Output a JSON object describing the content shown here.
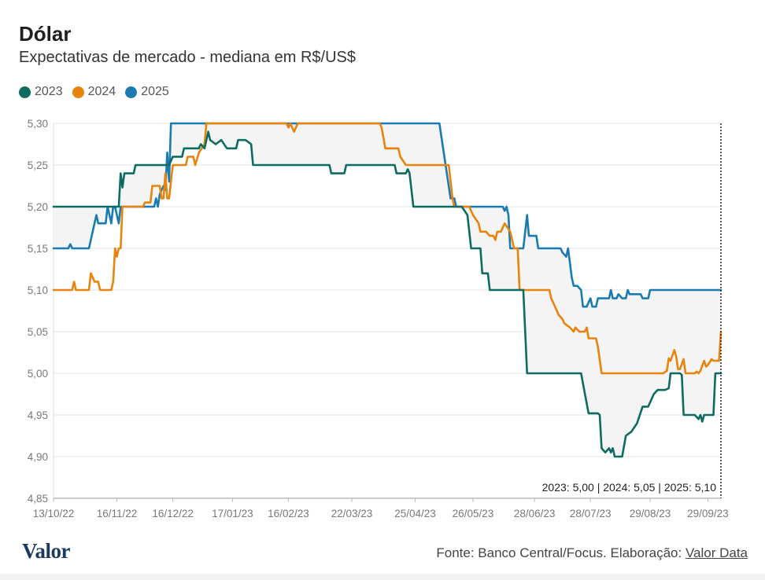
{
  "header": {
    "title": "Dólar",
    "subtitle": "Expectativas de mercado - mediana em R$/US$"
  },
  "footer": {
    "logo": "Valor",
    "source_prefix": "Fonte: Banco Central/Focus. Elaboração: ",
    "source_link": "Valor Data"
  },
  "chart_data": {
    "type": "line",
    "title": "Dólar",
    "subtitle": "Expectativas de mercado - mediana em R$/US$",
    "xlabel": "",
    "ylabel": "",
    "x_ticks": [
      "13/10/22",
      "16/11/22",
      "16/12/22",
      "17/01/23",
      "16/02/23",
      "22/03/23",
      "25/04/23",
      "26/05/23",
      "28/06/23",
      "28/07/23",
      "29/08/23",
      "29/09/23"
    ],
    "x_range": [
      "2022-10-13",
      "2023-10-06"
    ],
    "ylim": [
      4.85,
      5.3
    ],
    "y_ticks": [
      "4,85",
      "4,90",
      "4,95",
      "5,00",
      "5,05",
      "5,10",
      "5,15",
      "5,20",
      "5,25",
      "5,30"
    ],
    "grid": "horizontal",
    "legend": "top-left",
    "annotation": "2023: 5,00 | 2024: 5,05 | 2025: 5,10",
    "band_between": [
      "2023",
      "2025"
    ],
    "series": [
      {
        "name": "2023",
        "color": "#0e6b61",
        "points": [
          [
            "2022-10-13",
            5.2
          ],
          [
            "2022-11-17",
            5.2
          ],
          [
            "2022-11-18",
            5.24
          ],
          [
            "2022-11-19",
            5.223
          ],
          [
            "2022-11-20",
            5.24
          ],
          [
            "2022-11-25",
            5.24
          ],
          [
            "2022-11-26",
            5.25
          ],
          [
            "2022-12-13",
            5.25
          ],
          [
            "2022-12-14",
            5.25
          ],
          [
            "2022-12-16",
            5.26
          ],
          [
            "2022-12-21",
            5.26
          ],
          [
            "2022-12-22",
            5.27
          ],
          [
            "2022-12-30",
            5.27
          ],
          [
            "2022-12-31",
            5.275
          ],
          [
            "2023-01-02",
            5.27
          ],
          [
            "2023-01-04",
            5.29
          ],
          [
            "2023-01-05",
            5.28
          ],
          [
            "2023-01-08",
            5.275
          ],
          [
            "2023-01-11",
            5.28
          ],
          [
            "2023-01-14",
            5.27
          ],
          [
            "2023-01-19",
            5.27
          ],
          [
            "2023-01-20",
            5.28
          ],
          [
            "2023-01-24",
            5.28
          ],
          [
            "2023-01-27",
            5.275
          ],
          [
            "2023-01-28",
            5.25
          ],
          [
            "2023-03-10",
            5.25
          ],
          [
            "2023-03-11",
            5.24
          ],
          [
            "2023-03-18",
            5.24
          ],
          [
            "2023-03-19",
            5.25
          ],
          [
            "2023-04-14",
            5.25
          ],
          [
            "2023-04-15",
            5.24
          ],
          [
            "2023-04-20",
            5.24
          ],
          [
            "2023-04-21",
            5.245
          ],
          [
            "2023-04-22",
            5.24
          ],
          [
            "2023-04-24",
            5.2
          ],
          [
            "2023-05-20",
            5.2
          ],
          [
            "2023-05-23",
            5.19
          ],
          [
            "2023-05-25",
            5.15
          ],
          [
            "2023-05-30",
            5.15
          ],
          [
            "2023-05-31",
            5.12
          ],
          [
            "2023-06-03",
            5.12
          ],
          [
            "2023-06-04",
            5.1
          ],
          [
            "2023-06-22",
            5.1
          ],
          [
            "2023-06-24",
            5.0
          ],
          [
            "2023-07-23",
            5.0
          ],
          [
            "2023-07-27",
            4.952
          ],
          [
            "2023-08-01",
            4.952
          ],
          [
            "2023-08-02",
            4.95
          ],
          [
            "2023-08-03",
            4.91
          ],
          [
            "2023-08-05",
            4.905
          ],
          [
            "2023-08-07",
            4.91
          ],
          [
            "2023-08-08",
            4.905
          ],
          [
            "2023-08-09",
            4.91
          ],
          [
            "2023-08-10",
            4.9
          ],
          [
            "2023-08-14",
            4.9
          ],
          [
            "2023-08-16",
            4.925
          ],
          [
            "2023-08-19",
            4.93
          ],
          [
            "2023-08-22",
            4.94
          ],
          [
            "2023-08-25",
            4.96
          ],
          [
            "2023-08-28",
            4.96
          ],
          [
            "2023-08-31",
            4.975
          ],
          [
            "2023-09-02",
            4.98
          ],
          [
            "2023-09-06",
            4.98
          ],
          [
            "2023-09-08",
            4.982
          ],
          [
            "2023-09-09",
            5.0
          ],
          [
            "2023-09-14",
            5.0
          ],
          [
            "2023-09-15",
            4.998
          ],
          [
            "2023-09-16",
            4.95
          ],
          [
            "2023-09-22",
            4.95
          ],
          [
            "2023-09-24",
            4.945
          ],
          [
            "2023-09-25",
            4.95
          ],
          [
            "2023-09-26",
            4.942
          ],
          [
            "2023-09-27",
            4.95
          ],
          [
            "2023-10-02",
            4.95
          ],
          [
            "2023-10-03",
            5.0
          ],
          [
            "2023-10-06",
            5.0
          ]
        ]
      },
      {
        "name": "2024",
        "color": "#e8830c",
        "points": [
          [
            "2022-10-13",
            5.1
          ],
          [
            "2022-10-23",
            5.1
          ],
          [
            "2022-10-24",
            5.11
          ],
          [
            "2022-10-25",
            5.1
          ],
          [
            "2022-11-01",
            5.1
          ],
          [
            "2022-11-02",
            5.12
          ],
          [
            "2022-11-04",
            5.11
          ],
          [
            "2022-11-06",
            5.11
          ],
          [
            "2022-11-07",
            5.1
          ],
          [
            "2022-11-13",
            5.1
          ],
          [
            "2022-11-14",
            5.11
          ],
          [
            "2022-11-15",
            5.15
          ],
          [
            "2022-11-16",
            5.14
          ],
          [
            "2022-11-17",
            5.15
          ],
          [
            "2022-11-18",
            5.15
          ],
          [
            "2022-11-19",
            5.2
          ],
          [
            "2022-11-30",
            5.2
          ],
          [
            "2022-12-01",
            5.205
          ],
          [
            "2022-12-04",
            5.205
          ],
          [
            "2022-12-05",
            5.225
          ],
          [
            "2022-12-09",
            5.225
          ],
          [
            "2022-12-10",
            5.21
          ],
          [
            "2022-12-11",
            5.21
          ],
          [
            "2022-12-12",
            5.24
          ],
          [
            "2022-12-13",
            5.21
          ],
          [
            "2022-12-14",
            5.21
          ],
          [
            "2022-12-15",
            5.23
          ],
          [
            "2022-12-16",
            5.25
          ],
          [
            "2022-12-23",
            5.25
          ],
          [
            "2022-12-24",
            5.26
          ],
          [
            "2022-12-27",
            5.26
          ],
          [
            "2022-12-28",
            5.25
          ],
          [
            "2022-12-30",
            5.265
          ],
          [
            "2023-01-02",
            5.275
          ],
          [
            "2023-01-03",
            5.3
          ],
          [
            "2023-02-15",
            5.3
          ],
          [
            "2023-02-16",
            5.295
          ],
          [
            "2023-02-17",
            5.3
          ],
          [
            "2023-02-19",
            5.29
          ],
          [
            "2023-02-21",
            5.3
          ],
          [
            "2023-04-06",
            5.3
          ],
          [
            "2023-04-07",
            5.295
          ],
          [
            "2023-04-09",
            5.27
          ],
          [
            "2023-04-16",
            5.27
          ],
          [
            "2023-04-17",
            5.26
          ],
          [
            "2023-04-20",
            5.25
          ],
          [
            "2023-05-13",
            5.25
          ],
          [
            "2023-05-15",
            5.21
          ],
          [
            "2023-05-16",
            5.2
          ],
          [
            "2023-05-24",
            5.2
          ],
          [
            "2023-05-26",
            5.19
          ],
          [
            "2023-05-29",
            5.18
          ],
          [
            "2023-05-30",
            5.17
          ],
          [
            "2023-06-02",
            5.17
          ],
          [
            "2023-06-04",
            5.165
          ],
          [
            "2023-06-06",
            5.165
          ],
          [
            "2023-06-07",
            5.16
          ],
          [
            "2023-06-08",
            5.17
          ],
          [
            "2023-06-10",
            5.17
          ],
          [
            "2023-06-12",
            5.18
          ],
          [
            "2023-06-15",
            5.17
          ],
          [
            "2023-06-17",
            5.15
          ],
          [
            "2023-06-19",
            5.15
          ],
          [
            "2023-06-20",
            5.1
          ],
          [
            "2023-07-06",
            5.1
          ],
          [
            "2023-07-07",
            5.09
          ],
          [
            "2023-07-09",
            5.08
          ],
          [
            "2023-07-11",
            5.07
          ],
          [
            "2023-07-13",
            5.065
          ],
          [
            "2023-07-14",
            5.06
          ],
          [
            "2023-07-17",
            5.055
          ],
          [
            "2023-07-19",
            5.05
          ],
          [
            "2023-07-20",
            5.055
          ],
          [
            "2023-07-22",
            5.05
          ],
          [
            "2023-07-25",
            5.05
          ],
          [
            "2023-07-26",
            5.055
          ],
          [
            "2023-07-27",
            5.042
          ],
          [
            "2023-07-31",
            5.042
          ],
          [
            "2023-08-01",
            5.032
          ],
          [
            "2023-08-03",
            5.0
          ],
          [
            "2023-09-05",
            5.0
          ],
          [
            "2023-09-07",
            5.003
          ],
          [
            "2023-09-08",
            5.018
          ],
          [
            "2023-09-09",
            5.015
          ],
          [
            "2023-09-11",
            5.028
          ],
          [
            "2023-09-12",
            5.02
          ],
          [
            "2023-09-13",
            5.005
          ],
          [
            "2023-09-14",
            5.005
          ],
          [
            "2023-09-16",
            5.017
          ],
          [
            "2023-09-17",
            5.0
          ],
          [
            "2023-09-22",
            5.0
          ],
          [
            "2023-09-23",
            5.002
          ],
          [
            "2023-09-24",
            5.0
          ],
          [
            "2023-09-25",
            5.003
          ],
          [
            "2023-09-27",
            5.015
          ],
          [
            "2023-09-28",
            5.008
          ],
          [
            "2023-09-29",
            5.01
          ],
          [
            "2023-10-01",
            5.017
          ],
          [
            "2023-10-02",
            5.015
          ],
          [
            "2023-10-05",
            5.015
          ],
          [
            "2023-10-06",
            5.05
          ]
        ]
      },
      {
        "name": "2025",
        "color": "#1a7bb0",
        "points": [
          [
            "2022-10-13",
            5.15
          ],
          [
            "2022-10-21",
            5.15
          ],
          [
            "2022-10-22",
            5.155
          ],
          [
            "2022-10-23",
            5.15
          ],
          [
            "2022-11-01",
            5.15
          ],
          [
            "2022-11-02",
            5.16
          ],
          [
            "2022-11-04",
            5.18
          ],
          [
            "2022-11-05",
            5.19
          ],
          [
            "2022-11-06",
            5.18
          ],
          [
            "2022-11-10",
            5.18
          ],
          [
            "2022-11-11",
            5.2
          ],
          [
            "2022-11-12",
            5.19
          ],
          [
            "2022-11-13",
            5.18
          ],
          [
            "2022-11-14",
            5.2
          ],
          [
            "2022-11-15",
            5.2
          ],
          [
            "2022-11-16",
            5.19
          ],
          [
            "2022-11-17",
            5.18
          ],
          [
            "2022-11-18",
            5.2
          ],
          [
            "2022-12-06",
            5.2
          ],
          [
            "2022-12-07",
            5.21
          ],
          [
            "2022-12-08",
            5.2
          ],
          [
            "2022-12-09",
            5.215
          ],
          [
            "2022-12-11",
            5.225
          ],
          [
            "2022-12-12",
            5.22
          ],
          [
            "2022-12-13",
            5.265
          ],
          [
            "2022-12-14",
            5.23
          ],
          [
            "2022-12-15",
            5.3
          ],
          [
            "2023-05-08",
            5.3
          ],
          [
            "2023-05-14",
            5.21
          ],
          [
            "2023-05-16",
            5.21
          ],
          [
            "2023-05-17",
            5.2
          ],
          [
            "2023-06-11",
            5.2
          ],
          [
            "2023-06-12",
            5.195
          ],
          [
            "2023-06-13",
            5.2
          ],
          [
            "2023-06-14",
            5.19
          ],
          [
            "2023-06-15",
            5.15
          ],
          [
            "2023-06-22",
            5.15
          ],
          [
            "2023-06-23",
            5.17
          ],
          [
            "2023-06-24",
            5.19
          ],
          [
            "2023-06-25",
            5.165
          ],
          [
            "2023-06-29",
            5.165
          ],
          [
            "2023-06-30",
            5.15
          ],
          [
            "2023-07-12",
            5.15
          ],
          [
            "2023-07-13",
            5.145
          ],
          [
            "2023-07-15",
            5.14
          ],
          [
            "2023-07-16",
            5.15
          ],
          [
            "2023-07-18",
            5.115
          ],
          [
            "2023-07-19",
            5.105
          ],
          [
            "2023-07-21",
            5.105
          ],
          [
            "2023-07-23",
            5.1
          ],
          [
            "2023-07-24",
            5.08
          ],
          [
            "2023-07-26",
            5.08
          ],
          [
            "2023-07-28",
            5.09
          ],
          [
            "2023-07-29",
            5.08
          ],
          [
            "2023-07-31",
            5.08
          ],
          [
            "2023-08-01",
            5.09
          ],
          [
            "2023-08-07",
            5.09
          ],
          [
            "2023-08-08",
            5.1
          ],
          [
            "2023-08-09",
            5.09
          ],
          [
            "2023-08-11",
            5.09
          ],
          [
            "2023-08-12",
            5.095
          ],
          [
            "2023-08-14",
            5.09
          ],
          [
            "2023-08-16",
            5.09
          ],
          [
            "2023-08-17",
            5.1
          ],
          [
            "2023-08-18",
            5.095
          ],
          [
            "2023-08-24",
            5.095
          ],
          [
            "2023-08-25",
            5.09
          ],
          [
            "2023-08-28",
            5.09
          ],
          [
            "2023-08-29",
            5.1
          ],
          [
            "2023-10-06",
            5.1
          ]
        ]
      }
    ]
  }
}
